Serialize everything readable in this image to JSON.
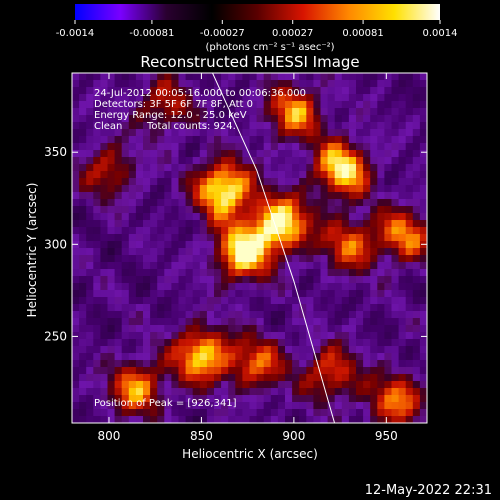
{
  "chart_data": {
    "type": "heatmap",
    "title": "Reconstructed RHESSI Image",
    "xlabel": "Heliocentric X (arcsec)",
    "ylabel": "Heliocentric Y (arcsec)",
    "xlim": [
      780,
      972
    ],
    "ylim": [
      203,
      393
    ],
    "x_ticks": [
      800,
      850,
      900,
      950
    ],
    "y_ticks": [
      250,
      300,
      350
    ],
    "colorbar": {
      "range": [
        -0.0014,
        0.0014
      ],
      "tick_labels": [
        "-0.0014",
        "-0.00081",
        "-0.00027",
        "0.00027",
        "0.00081",
        "0.0014"
      ],
      "units_label": "(photons cm⁻² s⁻¹ asec⁻²)",
      "colormap": [
        "#0000ff",
        "#7a00ff",
        "#2a0030",
        "#000000",
        "#5a0000",
        "#d81400",
        "#ff8800",
        "#ffe000",
        "#ffffff"
      ]
    },
    "annotations": {
      "time_range": "24-Jul-2012 00:05:16.000 to 00:06:36.000",
      "detectors": "Detectors: 3F 5F 6F 7F 8F, Att 0",
      "energy_range": "Energy Range: 12.0 - 25.0 keV",
      "algorithm": "Clean",
      "total_counts": "Total counts: 924.",
      "peak": "Position of Peak = [926,341]"
    },
    "peak": {
      "x": 926,
      "y": 341
    },
    "sources": [
      {
        "x": 862,
        "y": 330,
        "intensity": 1.0
      },
      {
        "x": 893,
        "y": 311,
        "intensity": 0.95
      },
      {
        "x": 872,
        "y": 295,
        "intensity": 0.9
      },
      {
        "x": 926,
        "y": 341,
        "intensity": 0.9
      },
      {
        "x": 900,
        "y": 372,
        "intensity": 0.7
      },
      {
        "x": 960,
        "y": 305,
        "intensity": 0.65
      },
      {
        "x": 930,
        "y": 300,
        "intensity": 0.6
      },
      {
        "x": 850,
        "y": 240,
        "intensity": 0.85
      },
      {
        "x": 880,
        "y": 235,
        "intensity": 0.6
      },
      {
        "x": 815,
        "y": 222,
        "intensity": 0.7
      },
      {
        "x": 920,
        "y": 230,
        "intensity": 0.6
      },
      {
        "x": 955,
        "y": 215,
        "intensity": 0.65
      },
      {
        "x": 800,
        "y": 340,
        "intensity": 0.5
      },
      {
        "x": 830,
        "y": 375,
        "intensity": 0.5
      }
    ],
    "limb": [
      [
        856,
        393
      ],
      [
        880,
        340
      ],
      [
        900,
        280
      ],
      [
        922,
        203
      ]
    ]
  },
  "footer": {
    "date": "12-May-2022 22:31"
  }
}
